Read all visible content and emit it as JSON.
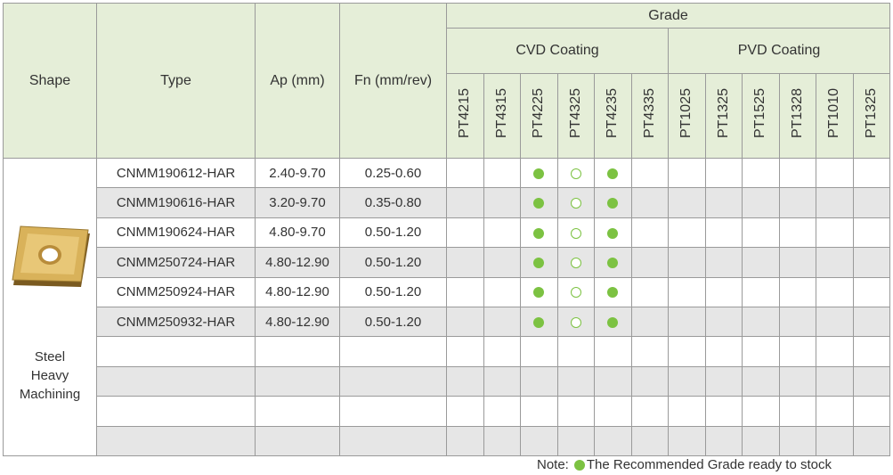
{
  "header": {
    "shape": "Shape",
    "type": "Type",
    "ap": "Ap (mm)",
    "fn": "Fn (mm/rev)",
    "grade": "Grade",
    "groups": [
      {
        "label": "CVD Coating",
        "grades": [
          "PT4215",
          "PT4315",
          "PT4225",
          "PT4325",
          "PT4235",
          "PT4335"
        ]
      },
      {
        "label": "PVD Coating",
        "grades": [
          "PT1025",
          "PT1325",
          "PT1525",
          "PT1328",
          "PT1010",
          "PT1325"
        ]
      }
    ]
  },
  "shape_label": [
    "Steel",
    "Heavy",
    "Machining"
  ],
  "rows": [
    [
      "CNMM190612-HAR",
      "2.40-9.70",
      "0.25-0.60"
    ],
    [
      "CNMM190616-HAR",
      "3.20-9.70",
      "0.35-0.80"
    ],
    [
      "CNMM190624-HAR",
      "4.80-9.70",
      "0.50-1.20"
    ],
    [
      "CNMM250724-HAR",
      "4.80-12.90",
      "0.50-1.20"
    ],
    [
      "CNMM250924-HAR",
      "4.80-12.90",
      "0.50-1.20"
    ],
    [
      "CNMM250932-HAR",
      "4.80-12.90",
      "0.50-1.20"
    ]
  ],
  "note": {
    "prefix": "Note:",
    "text": "The Recommended Grade ready to stock"
  }
}
